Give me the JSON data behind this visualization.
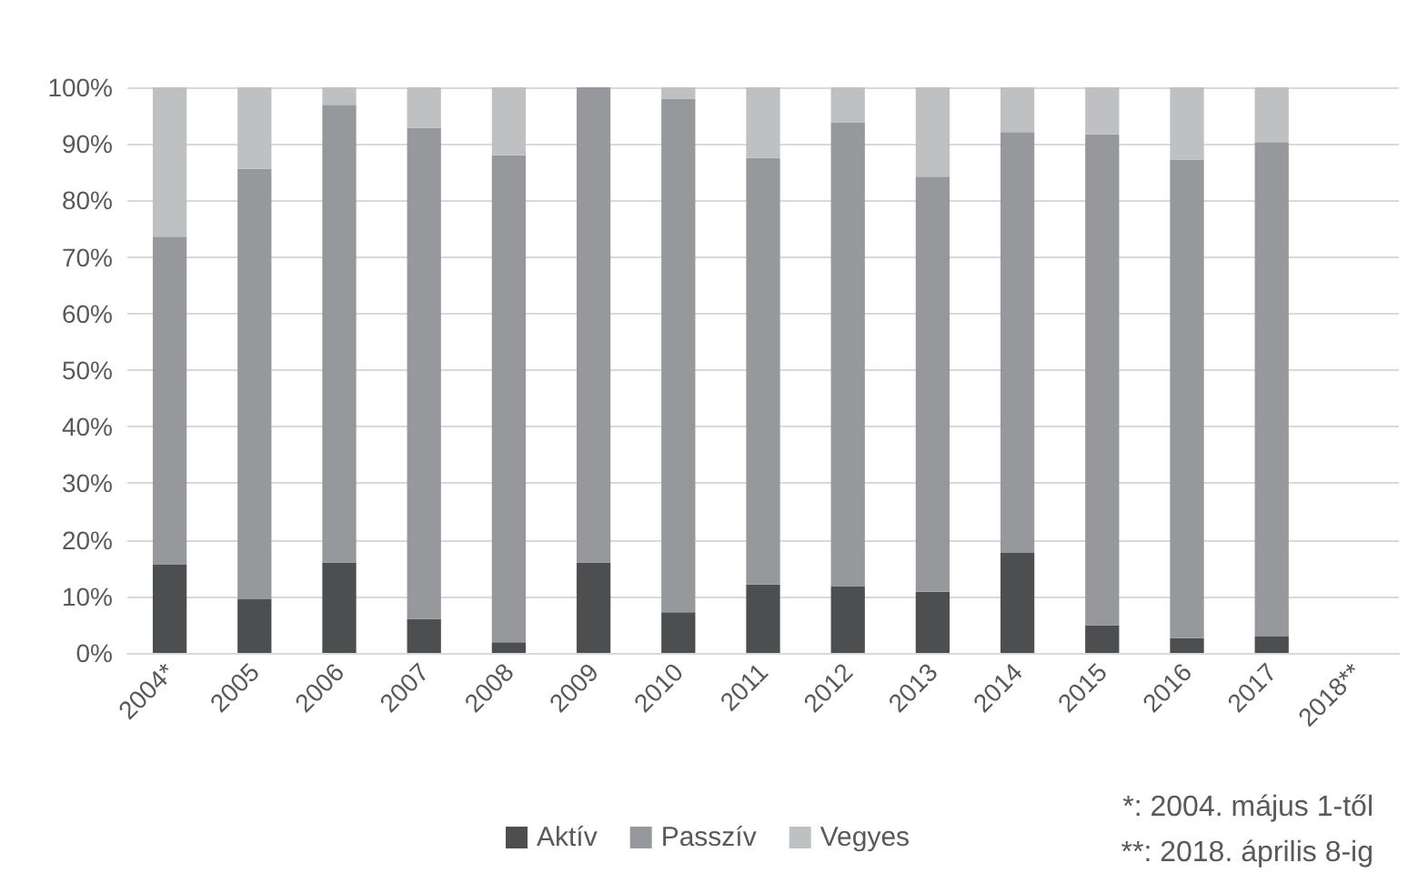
{
  "chart_data": {
    "type": "bar",
    "stacked": true,
    "categories": [
      "2004*",
      "2005",
      "2006",
      "2007",
      "2008",
      "2009",
      "2010",
      "2011",
      "2012",
      "2013",
      "2014",
      "2015",
      "2016",
      "2017",
      "2018**"
    ],
    "series": [
      {
        "name": "Aktív",
        "color": "#4d4e50",
        "values": [
          15.6,
          9.5,
          16.0,
          6.0,
          1.9,
          16.0,
          7.2,
          12.1,
          11.8,
          10.8,
          17.7,
          4.9,
          2.6,
          2.9,
          null
        ]
      },
      {
        "name": "Passzív",
        "color": "#97989b",
        "values": [
          58.0,
          76.1,
          80.9,
          86.8,
          86.1,
          84.0,
          90.7,
          75.4,
          82.0,
          73.4,
          74.4,
          86.8,
          84.6,
          87.4,
          null
        ]
      },
      {
        "name": "Vegyes",
        "color": "#bfc0c2",
        "values": [
          26.4,
          14.4,
          3.1,
          7.2,
          12.0,
          0,
          2.1,
          12.5,
          6.2,
          15.8,
          7.9,
          8.3,
          12.8,
          9.7,
          null
        ]
      }
    ],
    "ylim": [
      0,
      100
    ],
    "yticks": [
      {
        "value": 0,
        "label": "0%"
      },
      {
        "value": 10,
        "label": "10%"
      },
      {
        "value": 20,
        "label": "20%"
      },
      {
        "value": 30,
        "label": "30%"
      },
      {
        "value": 40,
        "label": "40%"
      },
      {
        "value": 50,
        "label": "50%"
      },
      {
        "value": 60,
        "label": "60%"
      },
      {
        "value": 70,
        "label": "70%"
      },
      {
        "value": 80,
        "label": "80%"
      },
      {
        "value": 90,
        "label": "90%"
      },
      {
        "value": 100,
        "label": "100%"
      }
    ],
    "grid": "y",
    "legend": "bottom",
    "annotations": [
      "*: 2004. május 1-től",
      "**: 2018. április 8-ig"
    ]
  }
}
